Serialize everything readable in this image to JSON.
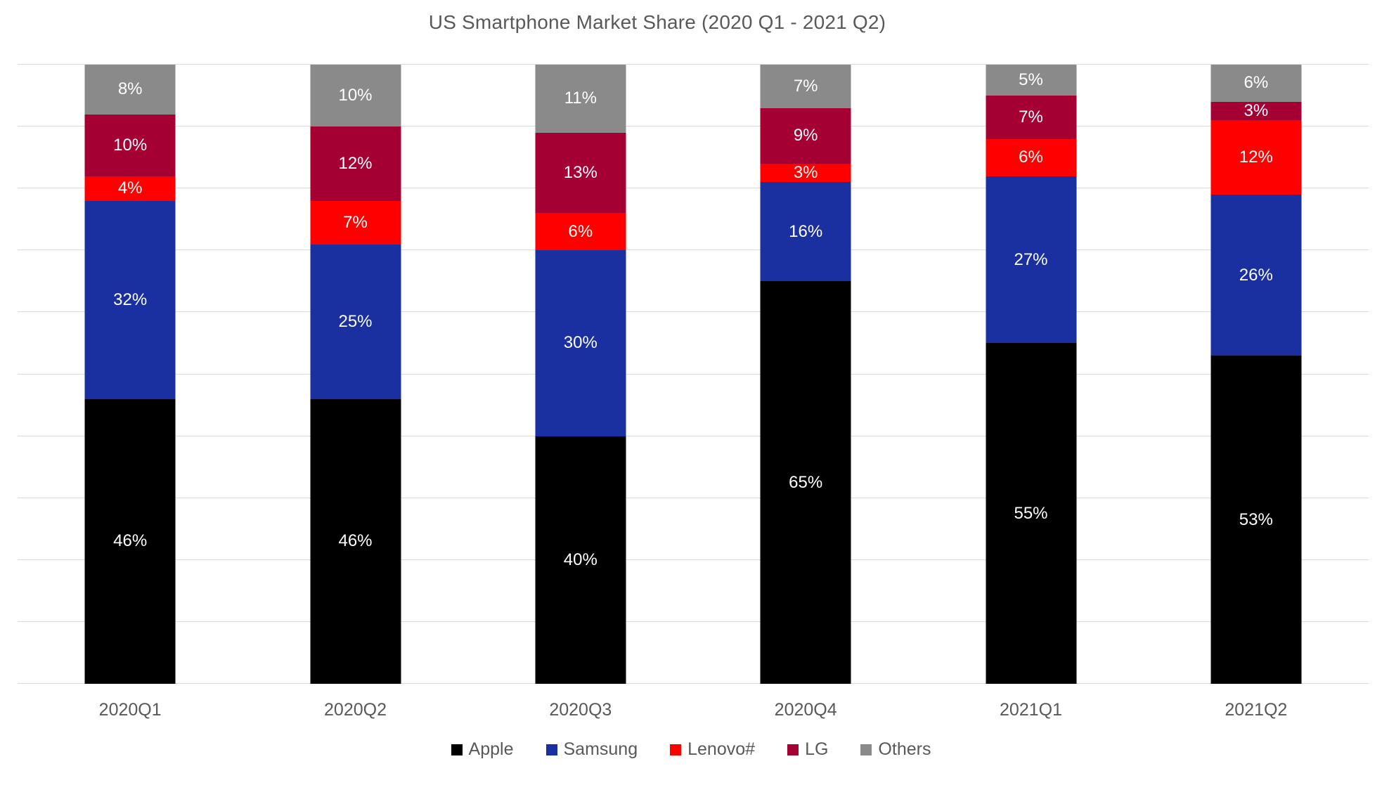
{
  "chart_data": {
    "type": "bar",
    "stacked": true,
    "title": "US Smartphone Market Share (2020 Q1 - 2021 Q2)",
    "categories": [
      "2020Q1",
      "2020Q2",
      "2020Q3",
      "2020Q4",
      "2021Q1",
      "2021Q2"
    ],
    "series": [
      {
        "name": "Apple",
        "color": "#000000",
        "values": [
          46,
          46,
          40,
          65,
          55,
          53
        ]
      },
      {
        "name": "Samsung",
        "color": "#1A2FA0",
        "values": [
          32,
          25,
          30,
          16,
          27,
          26
        ]
      },
      {
        "name": "Lenovo#",
        "color": "#FF0000",
        "values": [
          4,
          7,
          6,
          3,
          6,
          12
        ]
      },
      {
        "name": "LG",
        "color": "#A50034",
        "values": [
          10,
          12,
          13,
          9,
          7,
          3
        ]
      },
      {
        "name": "Others",
        "color": "#8A8A8A",
        "values": [
          8,
          10,
          11,
          7,
          5,
          6
        ]
      }
    ],
    "label_suffix": "%",
    "label_color": "#FFFFFF",
    "xlabel": "",
    "ylabel": "",
    "ylim": [
      0,
      100
    ],
    "gridline_step": 10,
    "grid": true,
    "gridline_color": "#D9D9D9",
    "axis_text_color": "#595959",
    "title_color": "#595959",
    "legend_position": "bottom"
  }
}
